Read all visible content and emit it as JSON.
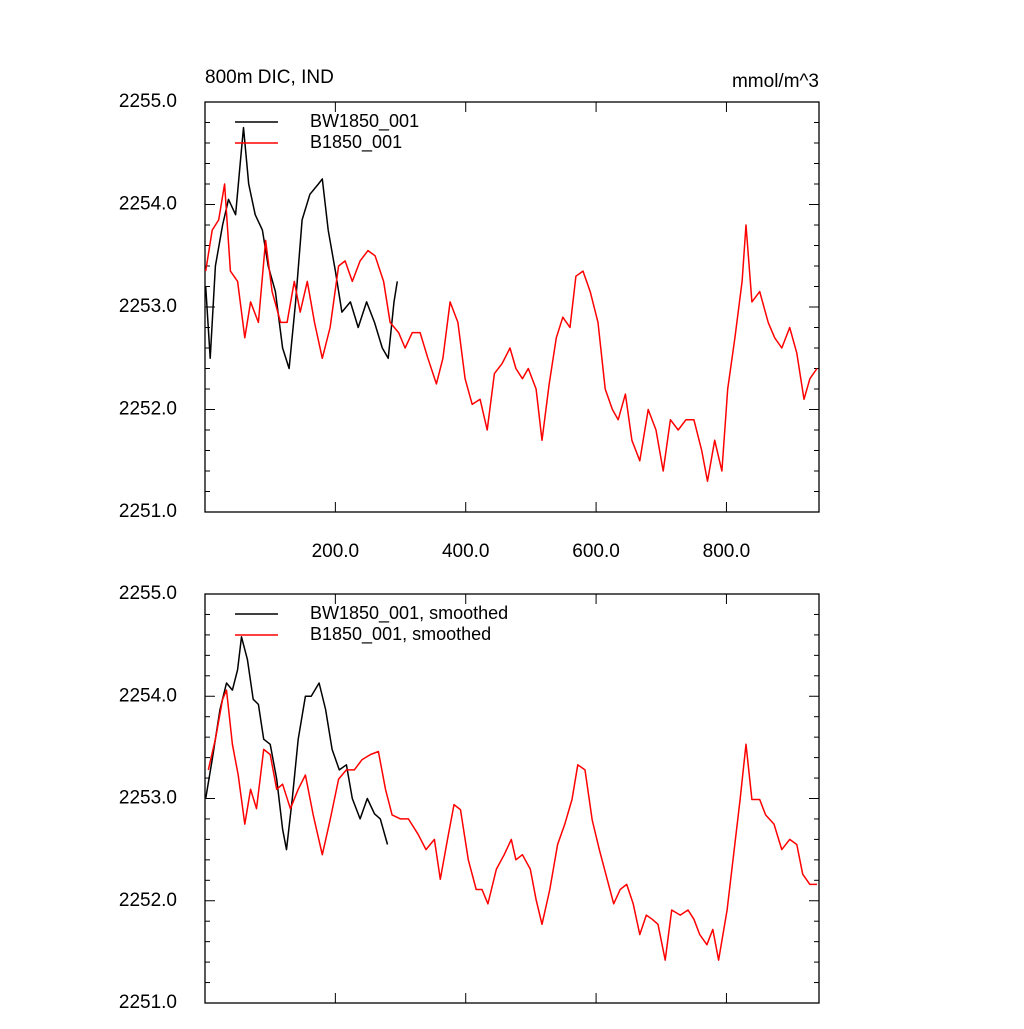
{
  "chart_data": [
    {
      "type": "line",
      "title": "800m DIC, IND",
      "units": "mmol/m^3",
      "legend": "upper left",
      "xlim": [
        0,
        942
      ],
      "ylim": [
        2251,
        2255
      ],
      "xticks": [
        {
          "value": 200,
          "label": "200.0"
        },
        {
          "value": 400,
          "label": "400.0"
        },
        {
          "value": 600,
          "label": "600.0"
        },
        {
          "value": 800,
          "label": "800.0"
        }
      ],
      "yticks": [
        {
          "value": 2251,
          "label": "2251.0"
        },
        {
          "value": 2252,
          "label": "2252.0"
        },
        {
          "value": 2253,
          "label": "2253.0"
        },
        {
          "value": 2254,
          "label": "2254.0"
        },
        {
          "value": 2255,
          "label": "2255.0"
        }
      ],
      "yminorticks": [
        2251.2,
        2251.4,
        2251.6,
        2251.8,
        2252.2,
        2252.4,
        2252.6,
        2252.8,
        2253.2,
        2253.4,
        2253.6,
        2253.8,
        2254.2,
        2254.4,
        2254.6,
        2254.8
      ],
      "series": [
        {
          "name": "BW1850_001",
          "color": "#000000",
          "x": [
            1,
            8,
            16,
            27,
            36,
            47,
            54,
            59,
            67,
            77,
            88,
            97,
            108,
            119,
            129,
            139,
            149,
            161,
            174,
            180,
            189,
            200,
            210,
            223,
            235,
            248,
            260,
            272,
            281,
            290,
            295
          ],
          "values": [
            2253.2,
            2252.5,
            2253.4,
            2253.8,
            2254.05,
            2253.9,
            2254.4,
            2254.75,
            2254.2,
            2253.9,
            2253.75,
            2253.4,
            2253.15,
            2252.6,
            2252.4,
            2253.05,
            2253.85,
            2254.1,
            2254.2,
            2254.25,
            2253.75,
            2253.35,
            2252.95,
            2253.05,
            2252.8,
            2253.05,
            2252.85,
            2252.6,
            2252.5,
            2253.05,
            2253.25
          ]
        },
        {
          "name": "B1850_001",
          "color": "#ff0000",
          "x": [
            1,
            11,
            21,
            30,
            39,
            50,
            61,
            70,
            82,
            93,
            103,
            116,
            126,
            137,
            146,
            157,
            168,
            180,
            192,
            205,
            215,
            226,
            238,
            250,
            261,
            274,
            284,
            297,
            307,
            318,
            330,
            342,
            355,
            365,
            376,
            388,
            399,
            410,
            422,
            433,
            444,
            456,
            468,
            477,
            487,
            496,
            508,
            517,
            528,
            539,
            549,
            560,
            569,
            580,
            591,
            603,
            614,
            625,
            634,
            645,
            655,
            667,
            680,
            692,
            703,
            714,
            726,
            738,
            750,
            762,
            771,
            782,
            793,
            802,
            813,
            824,
            830,
            839,
            851,
            864,
            874,
            885,
            897,
            908,
            919,
            928,
            939
          ],
          "values": [
            2253.35,
            2253.75,
            2253.85,
            2254.2,
            2253.35,
            2253.25,
            2252.7,
            2253.05,
            2252.85,
            2253.65,
            2253.15,
            2252.85,
            2252.85,
            2253.25,
            2252.95,
            2253.25,
            2252.85,
            2252.5,
            2252.8,
            2253.4,
            2253.45,
            2253.25,
            2253.45,
            2253.55,
            2253.5,
            2253.25,
            2252.85,
            2252.75,
            2252.6,
            2252.75,
            2252.75,
            2252.5,
            2252.25,
            2252.5,
            2253.05,
            2252.85,
            2252.3,
            2252.05,
            2252.1,
            2251.8,
            2252.35,
            2252.45,
            2252.6,
            2252.4,
            2252.3,
            2252.4,
            2252.2,
            2251.7,
            2252.25,
            2252.7,
            2252.9,
            2252.8,
            2253.3,
            2253.35,
            2253.15,
            2252.85,
            2252.2,
            2252.0,
            2251.9,
            2252.15,
            2251.7,
            2251.5,
            2252.0,
            2251.8,
            2251.4,
            2251.9,
            2251.8,
            2251.9,
            2251.9,
            2251.6,
            2251.3,
            2251.7,
            2251.4,
            2252.2,
            2252.7,
            2253.25,
            2253.8,
            2253.05,
            2253.15,
            2252.85,
            2252.7,
            2252.6,
            2252.8,
            2252.55,
            2252.1,
            2252.3,
            2252.4
          ]
        }
      ]
    },
    {
      "type": "line",
      "legend": "upper left",
      "xtick_labels": false,
      "xlim": [
        0,
        942
      ],
      "ylim": [
        2251,
        2255
      ],
      "xticks": [
        200,
        400,
        600,
        800
      ],
      "yticks": [
        {
          "value": 2251,
          "label": "2251.0"
        },
        {
          "value": 2252,
          "label": "2252.0"
        },
        {
          "value": 2253,
          "label": "2253.0"
        },
        {
          "value": 2254,
          "label": "2254.0"
        },
        {
          "value": 2255,
          "label": "2255.0"
        }
      ],
      "yminorticks": [
        2251.2,
        2251.4,
        2251.6,
        2251.8,
        2252.2,
        2252.4,
        2252.6,
        2252.8,
        2253.2,
        2253.4,
        2253.6,
        2253.8,
        2254.2,
        2254.4,
        2254.6,
        2254.8
      ],
      "series": [
        {
          "name": "BW1850_001, smoothed",
          "color": "#000000",
          "x": [
            1,
            11,
            23,
            33,
            42,
            50,
            56,
            65,
            74,
            82,
            90,
            100,
            110,
            119,
            125,
            134,
            143,
            154,
            163,
            175,
            185,
            195,
            206,
            217,
            226,
            238,
            249,
            260,
            269,
            280
          ],
          "values": [
            2253.0,
            2253.38,
            2253.87,
            2254.13,
            2254.06,
            2254.26,
            2254.58,
            2254.36,
            2253.97,
            2253.92,
            2253.58,
            2253.53,
            2253.19,
            2252.7,
            2252.5,
            2253.0,
            2253.58,
            2254.0,
            2254.0,
            2254.13,
            2253.87,
            2253.48,
            2253.28,
            2253.33,
            2253.0,
            2252.8,
            2253.0,
            2252.85,
            2252.8,
            2252.55
          ]
        },
        {
          "name": "B1850_001, smoothed",
          "color": "#ff0000",
          "x": [
            5,
            16,
            27,
            33,
            42,
            51,
            61,
            70,
            79,
            90,
            100,
            110,
            119,
            131,
            143,
            154,
            166,
            180,
            192,
            205,
            217,
            229,
            241,
            254,
            266,
            277,
            287,
            300,
            312,
            327,
            339,
            352,
            361,
            372,
            382,
            392,
            404,
            416,
            425,
            434,
            447,
            459,
            470,
            477,
            487,
            499,
            508,
            517,
            529,
            541,
            552,
            563,
            572,
            583,
            594,
            605,
            617,
            627,
            637,
            647,
            657,
            667,
            677,
            686,
            695,
            706,
            716,
            729,
            741,
            750,
            759,
            770,
            779,
            788,
            801,
            810,
            821,
            830,
            839,
            851,
            860,
            873,
            885,
            897,
            908,
            917,
            928,
            939
          ],
          "values": [
            2253.28,
            2253.58,
            2253.97,
            2254.06,
            2253.53,
            2253.23,
            2252.75,
            2253.09,
            2252.9,
            2253.48,
            2253.43,
            2253.09,
            2253.14,
            2252.9,
            2253.09,
            2253.23,
            2252.84,
            2252.45,
            2252.79,
            2253.19,
            2253.28,
            2253.28,
            2253.38,
            2253.43,
            2253.46,
            2253.09,
            2252.84,
            2252.8,
            2252.8,
            2252.65,
            2252.5,
            2252.6,
            2252.21,
            2252.6,
            2252.94,
            2252.89,
            2252.4,
            2252.11,
            2252.11,
            2251.97,
            2252.31,
            2252.45,
            2252.6,
            2252.4,
            2252.45,
            2252.31,
            2252.01,
            2251.77,
            2252.11,
            2252.55,
            2252.75,
            2252.99,
            2253.33,
            2253.28,
            2252.79,
            2252.5,
            2252.21,
            2251.97,
            2252.11,
            2252.16,
            2251.97,
            2251.67,
            2251.86,
            2251.82,
            2251.77,
            2251.42,
            2251.91,
            2251.86,
            2251.91,
            2251.82,
            2251.67,
            2251.57,
            2251.72,
            2251.42,
            2251.91,
            2252.4,
            2252.99,
            2253.53,
            2252.99,
            2252.99,
            2252.84,
            2252.75,
            2252.5,
            2252.6,
            2252.55,
            2252.26,
            2252.16,
            2252.16
          ]
        }
      ]
    }
  ]
}
